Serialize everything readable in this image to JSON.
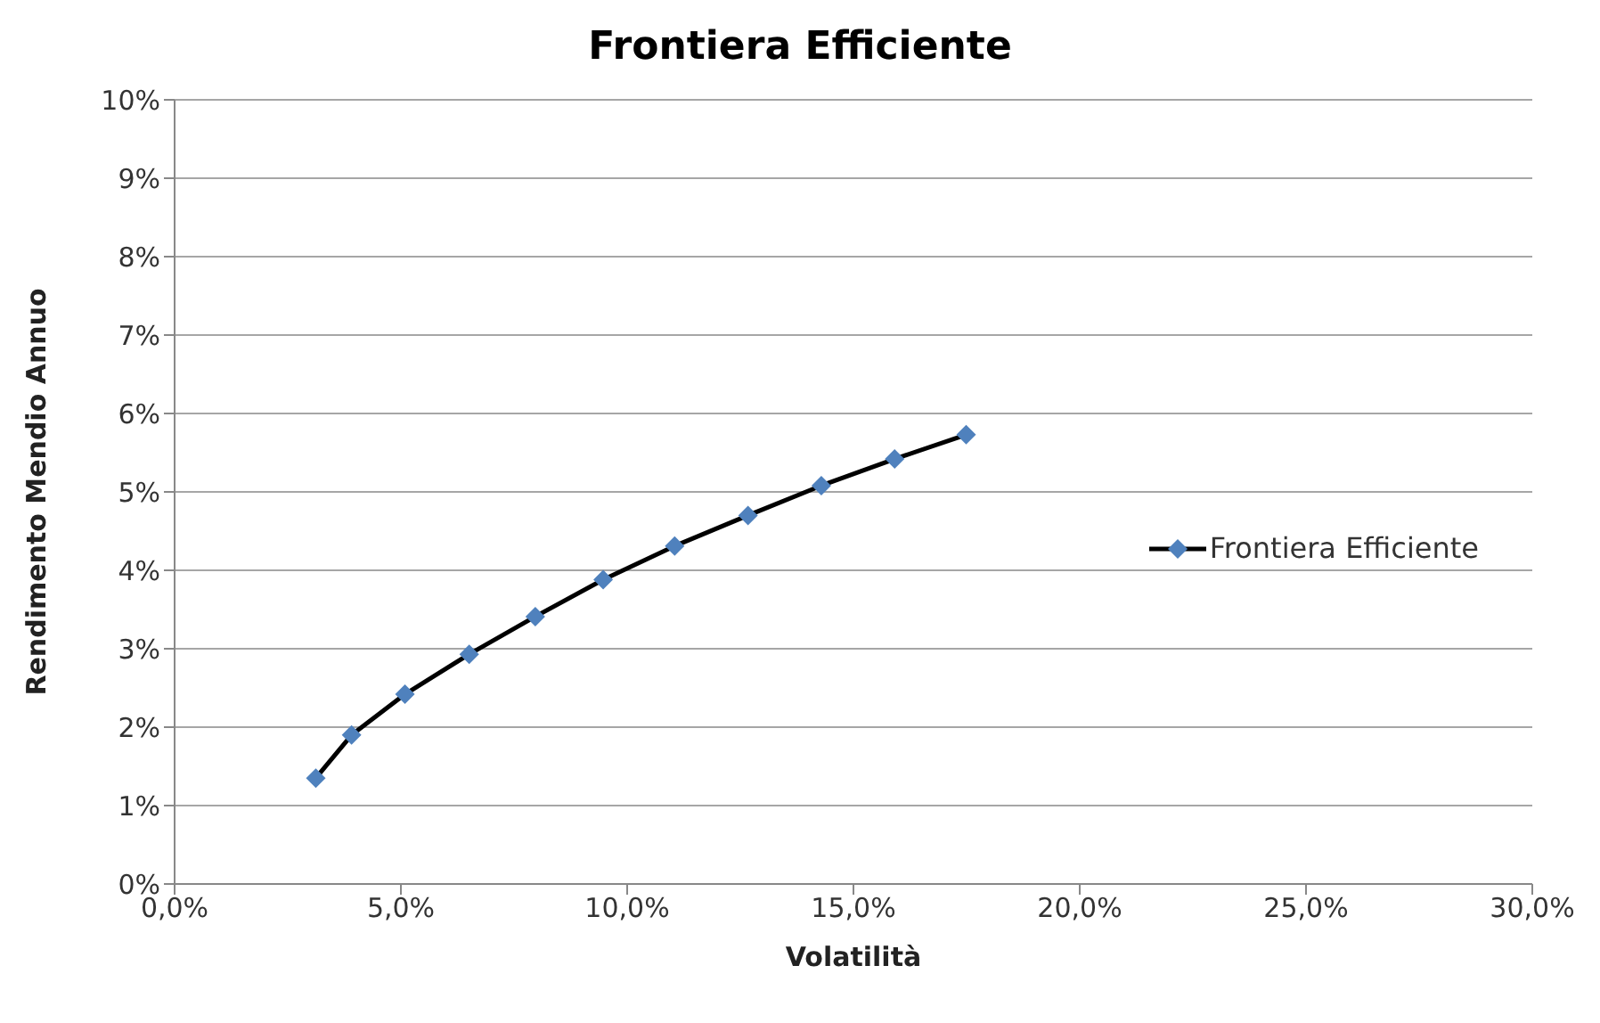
{
  "chart_data": {
    "type": "line",
    "title": "Frontiera Efficiente",
    "xlabel": "Volatilità",
    "ylabel": "Rendimento Mendio Annuo",
    "x": [
      3.12,
      3.91,
      5.09,
      6.51,
      7.97,
      9.47,
      11.05,
      12.67,
      14.29,
      15.91,
      17.49
    ],
    "series": [
      {
        "name": "Frontiera Efficiente",
        "color": "#4f81bd",
        "values": [
          1.35,
          1.9,
          2.42,
          2.93,
          3.41,
          3.88,
          4.31,
          4.7,
          5.08,
          5.42,
          5.73
        ]
      }
    ],
    "xlim": [
      0,
      30
    ],
    "xticks": [
      {
        "value": 0,
        "label": "0,0%"
      },
      {
        "value": 5,
        "label": "5,0%"
      },
      {
        "value": 10,
        "label": "10,0%"
      },
      {
        "value": 15,
        "label": "15,0%"
      },
      {
        "value": 20,
        "label": "20,0%"
      },
      {
        "value": 25,
        "label": "25,0%"
      },
      {
        "value": 30,
        "label": "30,0%"
      }
    ],
    "ylim": [
      0,
      10
    ],
    "yticks": [
      {
        "value": 0,
        "label": "0%"
      },
      {
        "value": 1,
        "label": "1%"
      },
      {
        "value": 2,
        "label": "2%"
      },
      {
        "value": 3,
        "label": "3%"
      },
      {
        "value": 4,
        "label": "4%"
      },
      {
        "value": 5,
        "label": "5%"
      },
      {
        "value": 6,
        "label": "6%"
      },
      {
        "value": 7,
        "label": "7%"
      },
      {
        "value": 8,
        "label": "8%"
      },
      {
        "value": 9,
        "label": "9%"
      },
      {
        "value": 10,
        "label": "10%"
      }
    ],
    "grid": "y",
    "legend": "right",
    "marker": "diamond",
    "line_style": "solid"
  }
}
